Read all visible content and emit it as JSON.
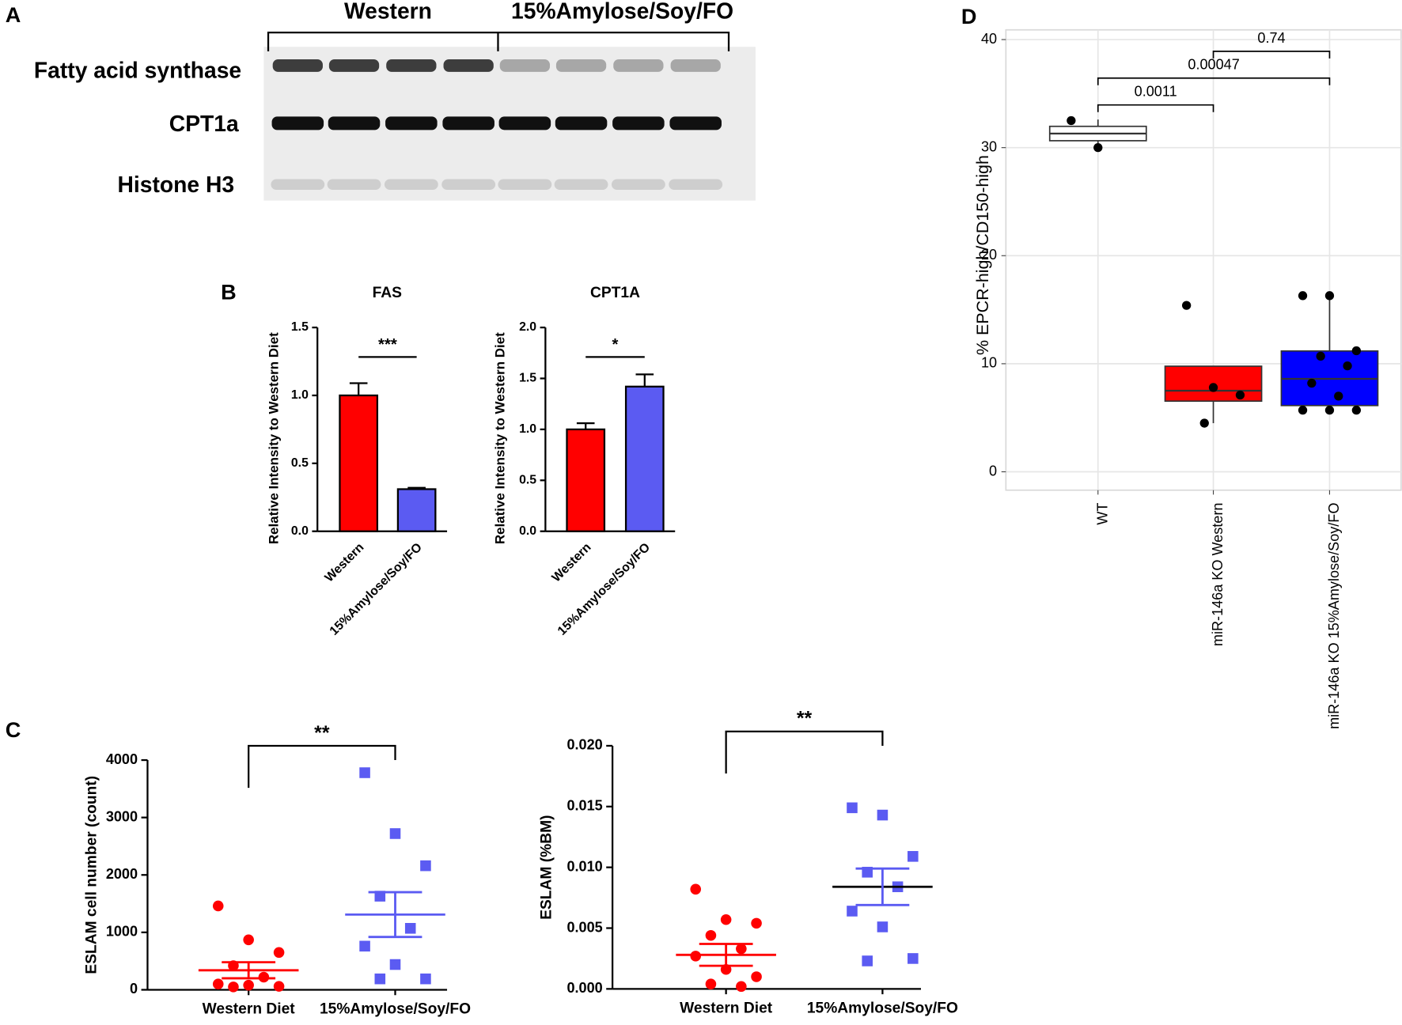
{
  "panel_labels": [
    "A",
    "B",
    "C",
    "D"
  ],
  "blot": {
    "groups": [
      "Western",
      "15%Amylose/Soy/FO"
    ],
    "rows": [
      "Fatty acid synthase",
      "CPT1a",
      "Histone H3"
    ]
  },
  "chart_data": [
    {
      "type": "bar",
      "title": "FAS",
      "ylabel": "Relative Intensity to Western Diet",
      "categories": [
        "Western",
        "15%Amylose/Soy/FO"
      ],
      "values": [
        1.0,
        0.31
      ],
      "errors": [
        0.09,
        0.01
      ],
      "colors": [
        "#ff0000",
        "#5b5bf2"
      ],
      "ylim": [
        0,
        1.5
      ],
      "yticks": [
        {
          "value": 0,
          "label": "0.0"
        },
        0.5,
        {
          "value": 1,
          "label": "1.0"
        },
        1.5
      ],
      "annotation": "***"
    },
    {
      "type": "bar",
      "title": "CPT1A",
      "ylabel": "Relative Intensity to Western Diet",
      "categories": [
        "Western",
        "15%Amylose/Soy/FO"
      ],
      "values": [
        1.0,
        1.42
      ],
      "errors": [
        0.06,
        0.12
      ],
      "colors": [
        "#ff0000",
        "#5b5bf2"
      ],
      "ylim": [
        0,
        2
      ],
      "yticks": [
        {
          "value": 0,
          "label": "0.0"
        },
        0.5,
        {
          "value": 1,
          "label": "1.0"
        },
        1.5,
        {
          "value": 2,
          "label": "2.0"
        }
      ],
      "annotation": "*"
    },
    {
      "type": "dot",
      "ylabel": "ESLAM cell number (count)",
      "categories": [
        "Western Diet",
        "15%Amylose/Soy/FO"
      ],
      "points": [
        [
          1460,
          870,
          650,
          420,
          220,
          100,
          80,
          60,
          50
        ],
        [
          3780,
          2720,
          2160,
          1630,
          1070,
          760,
          440,
          190,
          190
        ]
      ],
      "means": [
        340,
        1310
      ],
      "sem": [
        140,
        390
      ],
      "colors": [
        "#ff0000",
        "#5b5bf2"
      ],
      "markers": [
        "circle",
        "square"
      ],
      "ylim": [
        0,
        4000
      ],
      "yticks": [
        0,
        1000,
        2000,
        3000,
        4000
      ],
      "annotation": "**"
    },
    {
      "type": "dot",
      "ylabel": "ESLAM (%BM)",
      "categories": [
        "Western Diet",
        "15%Amylose/Soy/FO"
      ],
      "points": [
        [
          0.0082,
          0.0057,
          0.0054,
          0.0044,
          0.0033,
          0.0027,
          0.0016,
          0.001,
          0.0004,
          0.0002
        ],
        [
          0.0149,
          0.0143,
          0.0109,
          0.0096,
          0.0084,
          0.0064,
          0.0051,
          0.0025,
          0.0023
        ]
      ],
      "means": [
        0.0028,
        0.0084
      ],
      "sem": [
        0.0009,
        0.0015
      ],
      "colors": [
        "#ff0000",
        "#5b5bf2"
      ],
      "markers": [
        "circle",
        "square"
      ],
      "ylim": [
        0,
        0.02
      ],
      "yticks": [
        {
          "value": 0,
          "label": "0.000"
        },
        {
          "value": 0.005,
          "label": "0.005"
        },
        {
          "value": 0.01,
          "label": "0.010"
        },
        {
          "value": 0.015,
          "label": "0.015"
        },
        {
          "value": 0.02,
          "label": "0.020"
        }
      ],
      "annotation": "**"
    },
    {
      "type": "box",
      "ylabel": "% EPCR-high/CD150-high",
      "categories": [
        "WT",
        "miR-146a KO Western",
        "miR-146a KO 15%Amylose/Soy/FO"
      ],
      "boxes": [
        {
          "low": 30.2,
          "q1": 30.64,
          "median": 31.3,
          "q3": 31.97,
          "high": 32.6
        },
        {
          "low": 4.5,
          "q1": 6.54,
          "median": 7.5,
          "q3": 9.77,
          "high": 9.77
        },
        {
          "low": 5.7,
          "q1": 6.13,
          "median": 8.6,
          "q3": 11.18,
          "high": 16.3
        }
      ],
      "points": [
        [
          32.5,
          30.0
        ],
        [
          15.4,
          7.8,
          7.1,
          4.5
        ],
        [
          16.3,
          16.3,
          11.2,
          10.7,
          9.8,
          8.2,
          7.0,
          5.7,
          5.7,
          5.7
        ]
      ],
      "colors": [
        "#ffffff",
        "#ff0000",
        "#0000ff"
      ],
      "ylim": [
        -1.7,
        40.9
      ],
      "yticks": [
        0,
        10,
        20,
        30,
        40
      ],
      "grid": true,
      "comparisons": [
        "0.0011",
        "0.00047",
        "0.74"
      ]
    }
  ]
}
